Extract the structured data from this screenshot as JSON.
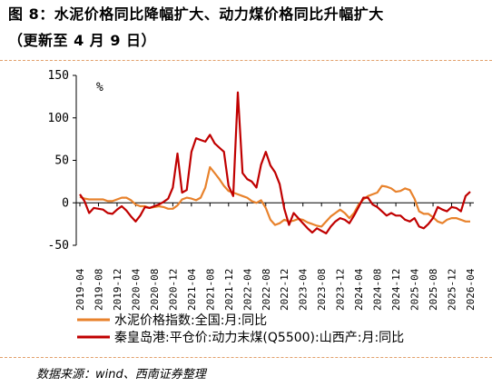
{
  "header": {
    "title": "图 8：水泥价格同比降幅扩大、动力煤价格同比升幅扩大",
    "subtitle": "（更新至 4 月 9 日）"
  },
  "footer": {
    "source": "数据来源：wind、西南证券整理"
  },
  "chart_data": {
    "type": "line",
    "unit_label": "%",
    "ylim": [
      -50,
      150
    ],
    "yticks": [
      -50,
      0,
      50,
      100,
      150
    ],
    "grid": false,
    "legend_position": "bottom",
    "x_tick_labels": [
      "2019-04",
      "2019-08",
      "2019-12",
      "2020-04",
      "2020-08",
      "2020-12",
      "2021-04",
      "2021-08",
      "2021-12",
      "2022-04",
      "2022-08",
      "2022-12",
      "2023-04",
      "2023-08",
      "2023-12",
      "2024-04",
      "2024-08",
      "2024-12",
      "2025-04",
      "2025-08",
      "2025-12",
      "2026-04"
    ],
    "x": [
      "2019-04",
      "2019-05",
      "2019-06",
      "2019-07",
      "2019-08",
      "2019-09",
      "2019-10",
      "2019-11",
      "2019-12",
      "2020-01",
      "2020-02",
      "2020-03",
      "2020-04",
      "2020-05",
      "2020-06",
      "2020-07",
      "2020-08",
      "2020-09",
      "2020-10",
      "2020-11",
      "2020-12",
      "2021-01",
      "2021-02",
      "2021-03",
      "2021-04",
      "2021-05",
      "2021-06",
      "2021-07",
      "2021-08",
      "2021-09",
      "2021-10",
      "2021-11",
      "2021-12",
      "2022-01",
      "2022-02",
      "2022-03",
      "2022-04",
      "2022-05",
      "2022-06",
      "2022-07",
      "2022-08",
      "2022-09",
      "2022-10",
      "2022-11",
      "2022-12",
      "2023-01",
      "2023-02",
      "2023-03",
      "2023-04",
      "2023-05",
      "2023-06",
      "2023-07",
      "2023-08",
      "2023-09",
      "2023-10",
      "2023-11",
      "2023-12",
      "2024-01",
      "2024-02",
      "2024-03",
      "2024-04",
      "2024-05",
      "2024-06",
      "2024-07",
      "2024-08",
      "2024-09",
      "2024-10",
      "2024-11",
      "2024-12",
      "2025-01",
      "2025-02",
      "2025-03",
      "2025-04",
      "2025-05",
      "2025-06",
      "2025-07",
      "2025-08",
      "2025-09",
      "2025-10",
      "2025-11",
      "2025-12",
      "2026-01",
      "2026-02",
      "2026-03",
      "2026-04"
    ],
    "series": [
      {
        "name": "水泥价格指数:全国:月:同比",
        "color": "#e8822c",
        "values": [
          7,
          5,
          4,
          4,
          4,
          4,
          2,
          2,
          4,
          6,
          6,
          3,
          -2,
          -4,
          -4,
          -6,
          -5,
          -4,
          -5,
          -7,
          -7,
          -3,
          4,
          6,
          5,
          3,
          6,
          18,
          42,
          35,
          28,
          20,
          14,
          12,
          10,
          8,
          6,
          2,
          0,
          3,
          -6,
          -20,
          -26,
          -24,
          -20,
          -22,
          -21,
          -19,
          -20,
          -23,
          -25,
          -27,
          -28,
          -22,
          -16,
          -12,
          -8,
          -12,
          -18,
          -12,
          -2,
          4,
          8,
          10,
          12,
          20,
          19,
          17,
          13,
          14,
          17,
          15,
          5,
          -10,
          -13,
          -13,
          -17,
          -22,
          -24,
          -20,
          -18,
          -18,
          -20,
          -22,
          -22
        ]
      },
      {
        "name": "秦皇岛港:平仓价:动力末煤(Q5500):山西产:月:同比",
        "color": "#c00000",
        "values": [
          10,
          2,
          -12,
          -6,
          -7,
          -8,
          -12,
          -13,
          -8,
          -4,
          -9,
          -16,
          -22,
          -15,
          -5,
          -6,
          -4,
          -2,
          1,
          5,
          18,
          58,
          12,
          15,
          60,
          76,
          74,
          72,
          80,
          70,
          65,
          60,
          20,
          8,
          130,
          35,
          28,
          25,
          18,
          45,
          60,
          44,
          36,
          22,
          -7,
          -26,
          -12,
          -18,
          -24,
          -30,
          -35,
          -30,
          -33,
          -36,
          -28,
          -22,
          -18,
          -20,
          -24,
          -15,
          -5,
          6,
          6,
          -2,
          -5,
          -10,
          -15,
          -12,
          -15,
          -15,
          -20,
          -22,
          -18,
          -28,
          -30,
          -25,
          -18,
          -5,
          -8,
          -10,
          -5,
          -6,
          -10,
          8,
          13
        ]
      }
    ]
  }
}
